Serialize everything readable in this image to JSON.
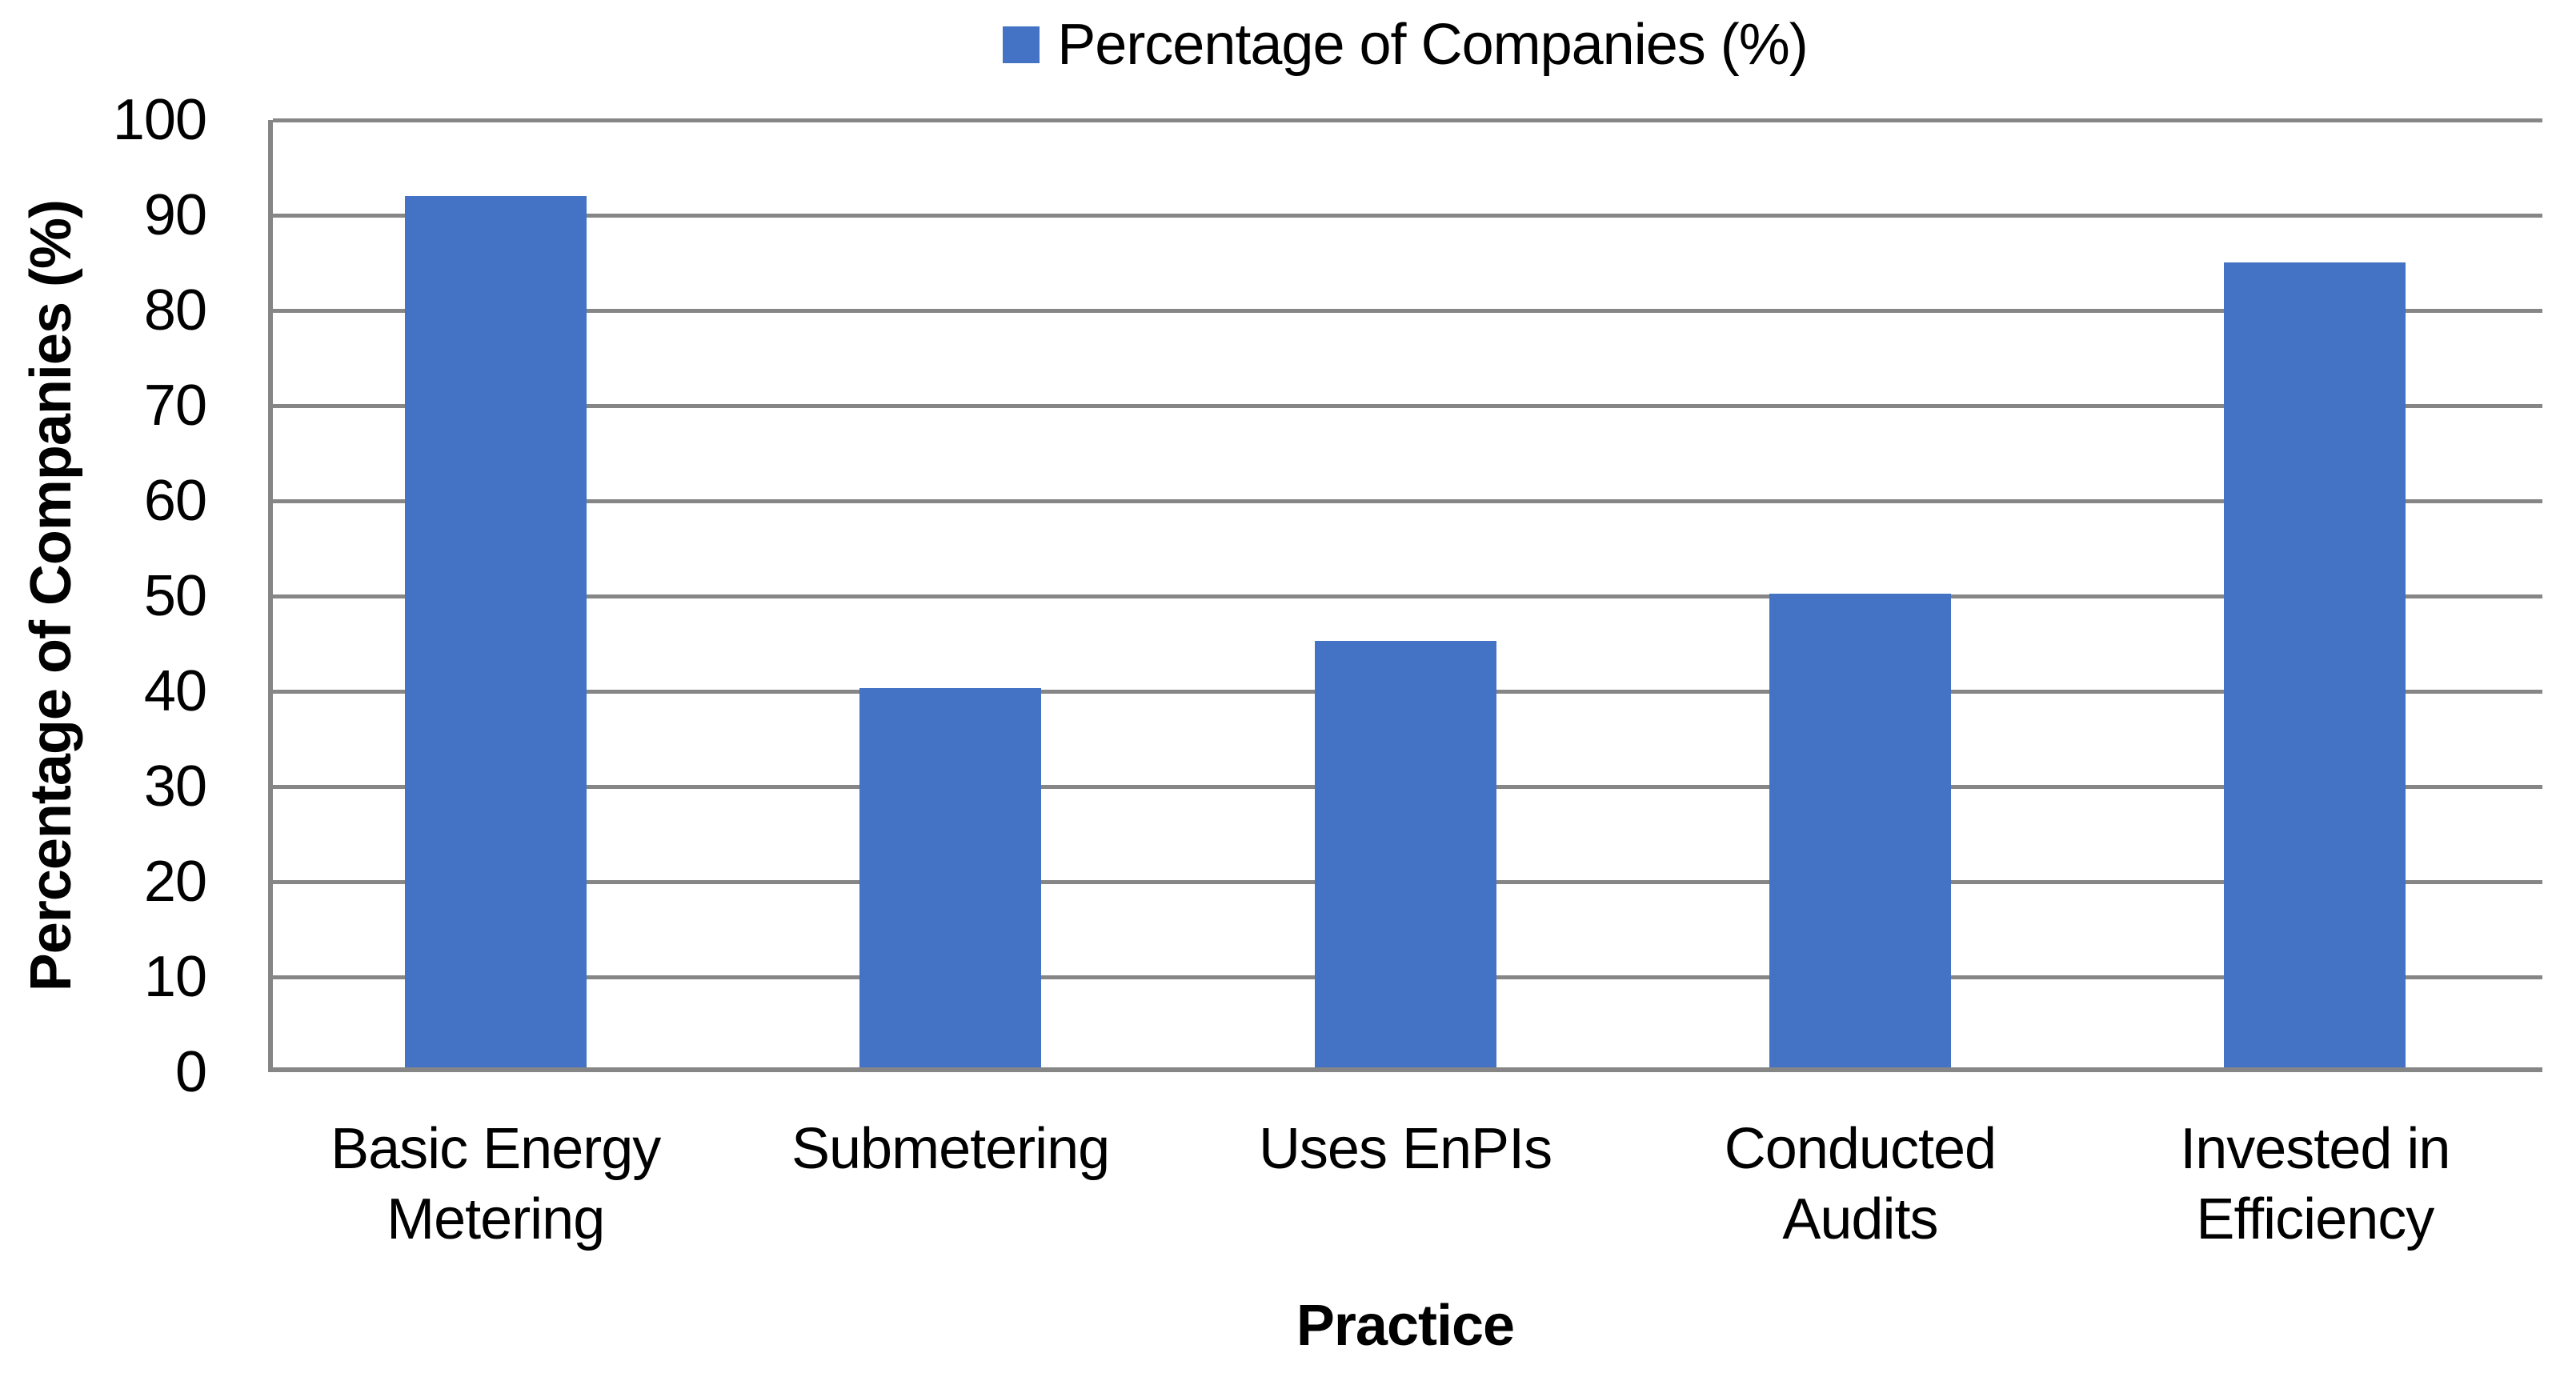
{
  "chart_data": {
    "type": "bar",
    "categories": [
      "Basic Energy Metering",
      "Submetering",
      "Uses EnPIs",
      "Conducted Audits",
      "Invested in Efficiency"
    ],
    "series": [
      {
        "name": "Percentage of Companies (%)",
        "values": [
          92,
          40,
          45,
          50,
          85
        ]
      }
    ],
    "title": "",
    "xlabel": "Practice",
    "ylabel": "Percentage of Companies (%)",
    "ylim": [
      0,
      100
    ],
    "ytick_step": 10,
    "ytick_labels": [
      "0",
      "10",
      "20",
      "30",
      "40",
      "50",
      "60",
      "70",
      "80",
      "90",
      "100"
    ],
    "grid": true,
    "legend_position": "top-center",
    "bar_color": "#4472C4",
    "axis_color": "#868686",
    "grid_color": "#868686",
    "text_color": "#000000",
    "background_color": "#FFFFFF"
  }
}
